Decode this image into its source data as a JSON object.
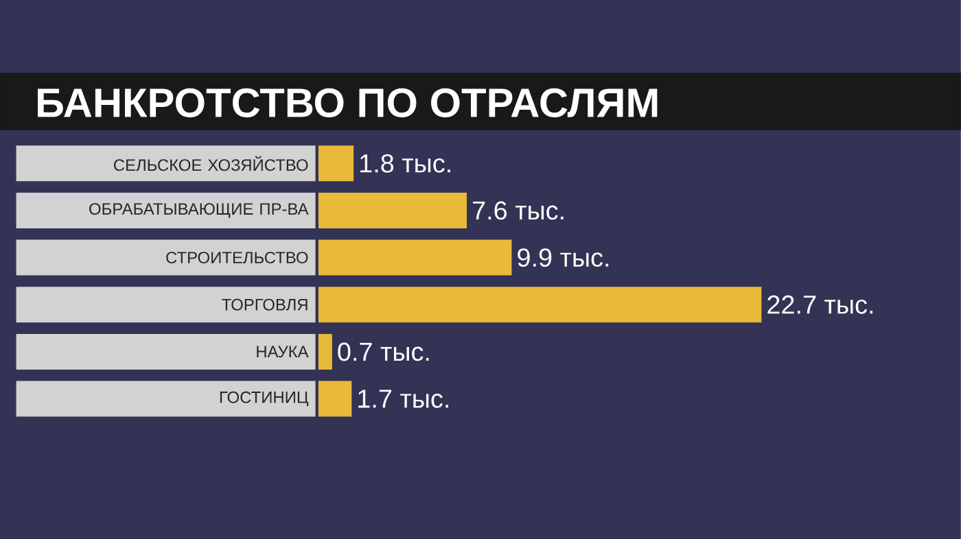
{
  "chart_data": {
    "type": "bar",
    "orientation": "horizontal",
    "title": "БАНКРОТСТВО ПО ОТРАСЛЯМ",
    "categories": [
      "СЕЛЬСКОЕ ХОЗЯЙСТВО",
      "ОБРАБАТЫВАЮЩИЕ ПР-ВА",
      "СТРОИТЕЛЬСТВО",
      "ТОРГОВЛЯ",
      "НАУКА",
      "ГОСТИНИЦ"
    ],
    "values": [
      1.8,
      7.6,
      9.9,
      22.7,
      0.7,
      1.7
    ],
    "value_labels": [
      "1.8 тыс.",
      "7.6 тыс.",
      "9.9 тыс.",
      "22.7 тыс.",
      "0.7 тыс.",
      "1.7 тыс."
    ],
    "color": "#e9b93a"
  }
}
